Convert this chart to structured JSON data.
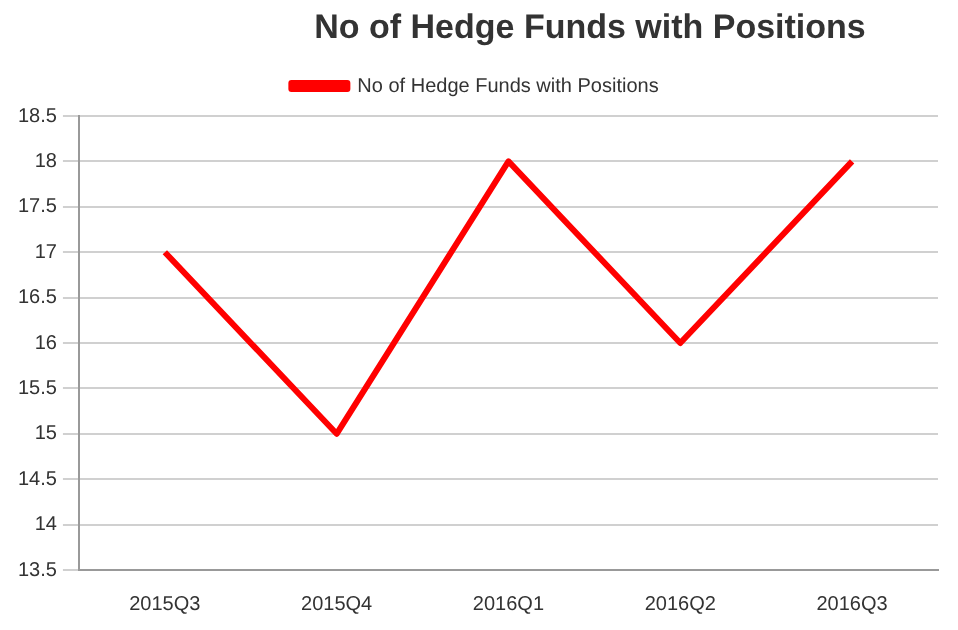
{
  "chart_data": {
    "type": "line",
    "title": "No of Hedge Funds with Positions",
    "categories": [
      "2015Q3",
      "2015Q4",
      "2016Q1",
      "2016Q2",
      "2016Q3"
    ],
    "series": [
      {
        "name": "No of Hedge Funds with Positions",
        "color": "#ff0000",
        "values": [
          17,
          15,
          18,
          16,
          18
        ]
      }
    ],
    "ylim": [
      13.5,
      18.5
    ],
    "yticks": [
      13.5,
      14,
      14.5,
      15,
      15.5,
      16,
      16.5,
      17,
      17.5,
      18,
      18.5
    ],
    "grid": "y",
    "legend": "top",
    "marker": "none"
  }
}
